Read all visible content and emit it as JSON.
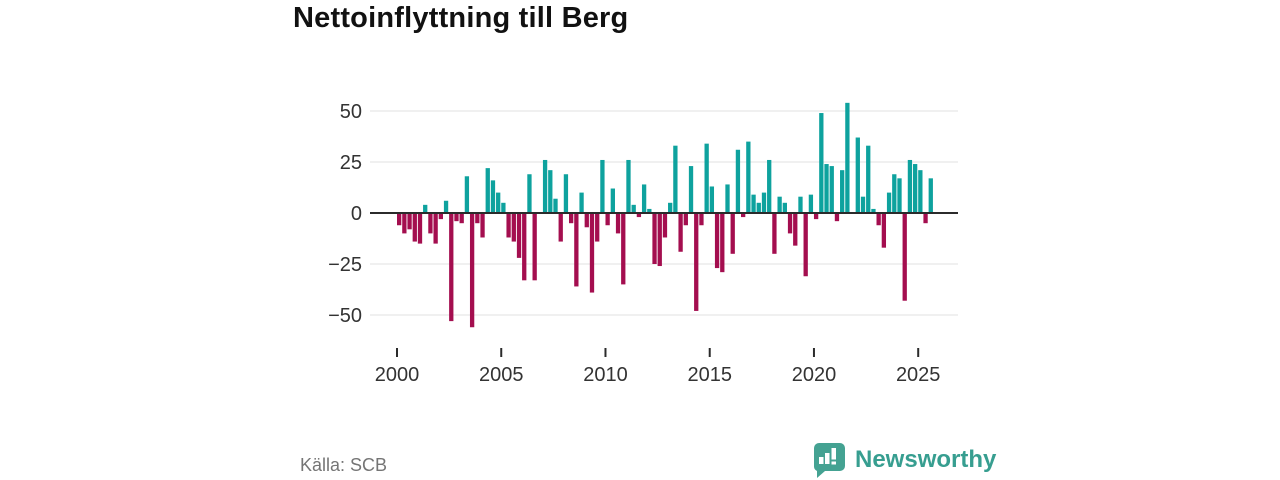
{
  "title": "Nettoinflyttning till Berg",
  "source": "Källa: SCB",
  "brand": {
    "name": "Newsworthy",
    "icon": "bar-chart-speech-bubble"
  },
  "colors": {
    "positive_bar": "#0EA29E",
    "negative_bar": "#A40E4F",
    "grid": "#e0e0e0",
    "zero_axis": "#2b2b2b",
    "axis_text": "#333333",
    "title_text": "#111111",
    "source_text": "#757575",
    "brand_teal": "#379e90"
  },
  "chart_data": {
    "type": "bar",
    "title": "Nettoinflyttning till Berg",
    "xlabel": "",
    "ylabel": "",
    "frequency": "quarterly",
    "start_period": "2000Q1",
    "end_period": "2025Q3",
    "x_tick_years": [
      2000,
      2005,
      2010,
      2015,
      2020,
      2025
    ],
    "y_ticks": [
      {
        "v": 50,
        "label": "50"
      },
      {
        "v": 25,
        "label": "25"
      },
      {
        "v": 0,
        "label": "0"
      },
      {
        "v": -25,
        "label": "−25"
      },
      {
        "v": -50,
        "label": "−50"
      }
    ],
    "ylim": [
      -60,
      58
    ],
    "grid": true,
    "legend": "none",
    "values": [
      -6,
      -10,
      -8,
      -14,
      -15,
      4,
      -10,
      -15,
      -3,
      6,
      -53,
      -4,
      -5,
      18,
      -56,
      -5,
      -12,
      22,
      16,
      10,
      5,
      -12,
      -14,
      -22,
      -33,
      19,
      -33,
      0,
      26,
      21,
      7,
      -14,
      19,
      -5,
      -36,
      10,
      -7,
      -39,
      -14,
      26,
      -6,
      12,
      -10,
      -35,
      26,
      4,
      -2,
      14,
      2,
      -25,
      -26,
      -12,
      5,
      33,
      -19,
      -6,
      23,
      -48,
      -6,
      34,
      13,
      -27,
      -29,
      14,
      -20,
      31,
      -2,
      35,
      9,
      5,
      10,
      26,
      -20,
      8,
      5,
      -10,
      -16,
      8,
      -31,
      9,
      -3,
      49,
      24,
      23,
      -4,
      21,
      54,
      0,
      37,
      8,
      33,
      2,
      -6,
      -17,
      10,
      19,
      17,
      -43,
      26,
      24,
      21,
      -5,
      17
    ]
  }
}
